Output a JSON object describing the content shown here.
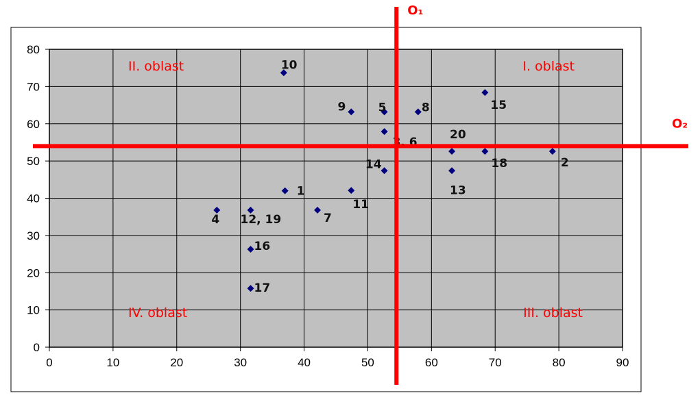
{
  "colors": {
    "plot_background": "#c0c0c0",
    "gridline": "#000000",
    "marker": "#00007f",
    "threshold_line": "#ff0000",
    "region_text": "#ff0000"
  },
  "chart_data": {
    "type": "scatter",
    "title": "",
    "xlabel": "",
    "ylabel": "",
    "xlim": [
      0,
      90
    ],
    "ylim": [
      0,
      80
    ],
    "x_ticks": [
      "0",
      "10",
      "20",
      "30",
      "40",
      "50",
      "60",
      "70",
      "80",
      "90"
    ],
    "y_ticks": [
      "0",
      "10",
      "20",
      "30",
      "40",
      "50",
      "60",
      "70",
      "80"
    ],
    "grid": true,
    "legend": "none",
    "marker_shape": "diamond",
    "points": [
      {
        "label": "1",
        "x": 37,
        "y": 42
      },
      {
        "label": "2",
        "x": 79,
        "y": 52.6
      },
      {
        "label": "3, 6",
        "x": 52.6,
        "y": 57.9
      },
      {
        "label": "4",
        "x": 26.3,
        "y": 36.8
      },
      {
        "label": "5",
        "x": 52.6,
        "y": 63.2
      },
      {
        "label": "7",
        "x": 42.1,
        "y": 36.8
      },
      {
        "label": "8",
        "x": 57.9,
        "y": 63.2
      },
      {
        "label": "9",
        "x": 47.4,
        "y": 63.2
      },
      {
        "label": "10",
        "x": 36.8,
        "y": 73.7
      },
      {
        "label": "11",
        "x": 47.4,
        "y": 42.1
      },
      {
        "label": "12, 19",
        "x": 31.6,
        "y": 36.8
      },
      {
        "label": "13",
        "x": 63.2,
        "y": 47.4
      },
      {
        "label": "14",
        "x": 52.6,
        "y": 47.4
      },
      {
        "label": "15",
        "x": 68.4,
        "y": 68.4
      },
      {
        "label": "16",
        "x": 31.6,
        "y": 26.3
      },
      {
        "label": "17",
        "x": 31.6,
        "y": 15.8
      },
      {
        "label": "18",
        "x": 68.4,
        "y": 52.6
      },
      {
        "label": "20",
        "x": 63.2,
        "y": 52.6
      }
    ],
    "reference_lines": [
      {
        "name": "O₁",
        "orientation": "vertical",
        "x": 54.5
      },
      {
        "name": "O₂",
        "orientation": "horizontal",
        "y": 54
      }
    ],
    "regions": [
      {
        "label": "I. oblast",
        "position": "top-right"
      },
      {
        "label": "II. oblast",
        "position": "top-left"
      },
      {
        "label": "III. oblast",
        "position": "bottom-right"
      },
      {
        "label": "IV. oblast",
        "position": "bottom-left"
      }
    ]
  }
}
